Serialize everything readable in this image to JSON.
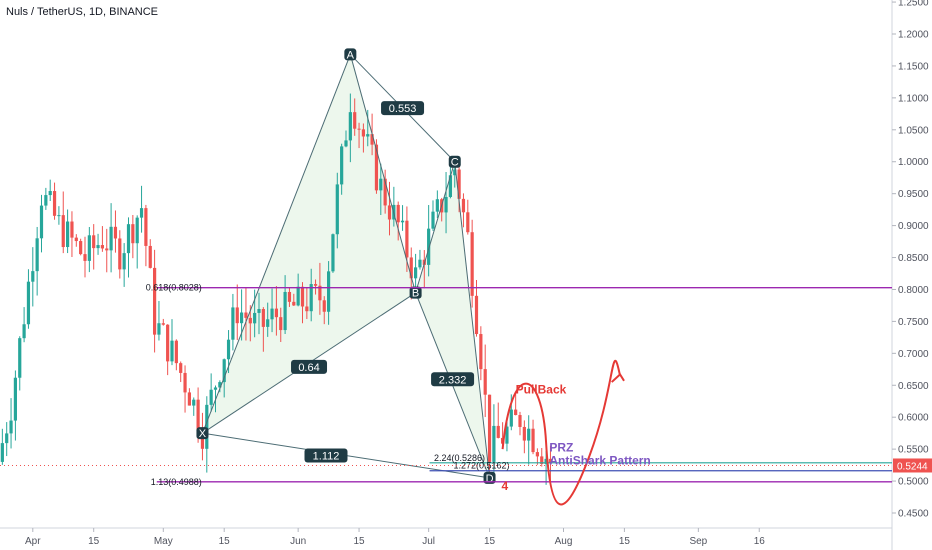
{
  "header": {
    "title": "Nuls / TetherUS, 1D, BINANCE"
  },
  "colors": {
    "up": "#26a69a",
    "down": "#ef5350",
    "pattern_line": "#4c6c74",
    "pattern_fill": "#e8f5e9",
    "fib": "#9c27b0",
    "prz_line": "#26a69a",
    "prz_blue": "#3f51b5",
    "annotation_red": "#e53935",
    "annotation_purple": "#7e57c2",
    "price_tag": "#ef5350"
  },
  "chart_data": {
    "type": "candlestick",
    "y_axis": {
      "ticks": [
        "1.2500",
        "1.2000",
        "1.1500",
        "1.1000",
        "1.0500",
        "1.0000",
        "0.9500",
        "0.9000",
        "0.8500",
        "0.8000",
        "0.7500",
        "0.7000",
        "0.6500",
        "0.6000",
        "0.5500",
        "0.5000",
        "0.4500"
      ],
      "ylim": [
        0.43,
        1.25
      ],
      "position": "right"
    },
    "x_axis": {
      "ticks": [
        "Apr",
        "15",
        "May",
        "15",
        "Jun",
        "15",
        "Jul",
        "15",
        "Aug",
        "15",
        "Sep",
        "16"
      ]
    },
    "last_price": "0.5244",
    "pattern_points": [
      {
        "label": "X",
        "x": "May 10",
        "y": 0.575
      },
      {
        "label": "A",
        "x": "Jun 13",
        "y": 1.168
      },
      {
        "label": "B",
        "x": "Jun 28",
        "y": 0.795
      },
      {
        "label": "C",
        "x": "Jul 7",
        "y": 1.0
      },
      {
        "label": "D",
        "x": "Jul 15",
        "y": 0.505
      }
    ],
    "ratios": [
      "0.553",
      "0.64",
      "2.332",
      "1.112"
    ],
    "fib_levels": [
      {
        "label": "0.618(0.8028)",
        "value": 0.8028
      },
      {
        "label": "1.13(0.4988)",
        "value": 0.4988
      }
    ],
    "prz_levels": [
      {
        "label": "2.24(0.5286)",
        "value": 0.5286
      },
      {
        "label": "1.272(0.5162)",
        "value": 0.5162
      }
    ],
    "annotations": {
      "pullback": "PullBack",
      "prz": "PRZ",
      "pattern_name": "AntiShark Pattern",
      "four": "4"
    }
  }
}
